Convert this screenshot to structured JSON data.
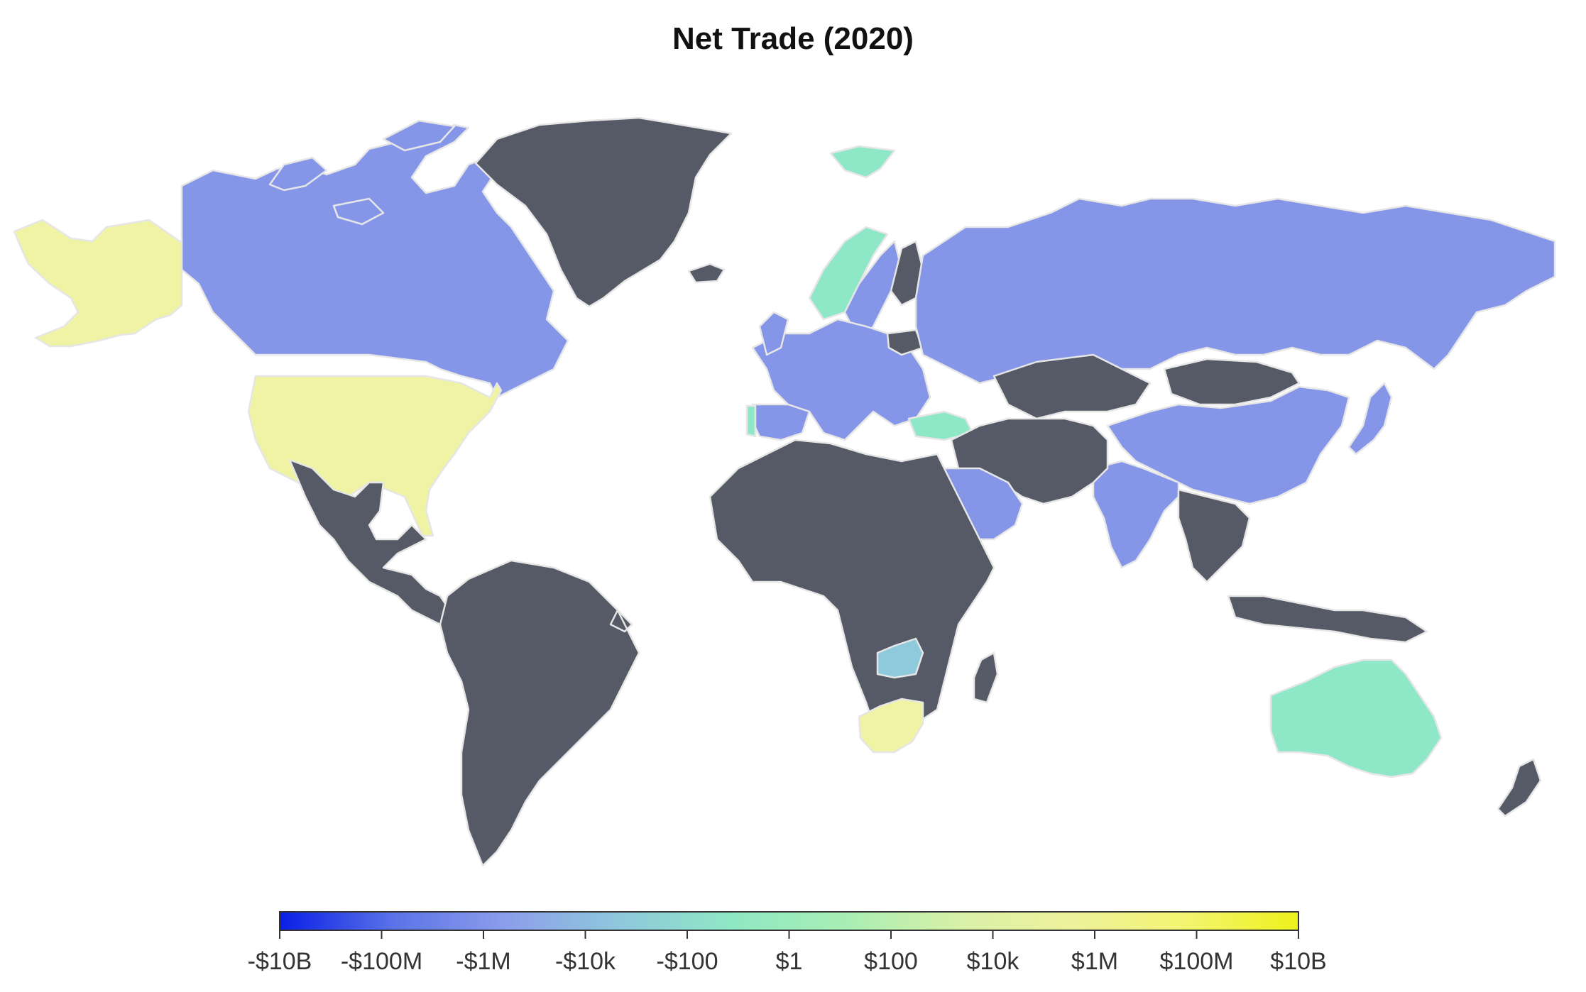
{
  "title": "Net Trade (2020)",
  "legend": {
    "ticks": [
      "-$10B",
      "-$100M",
      "-$1M",
      "-$10k",
      "-$100",
      "$1",
      "$100",
      "$10k",
      "$1M",
      "$100M",
      "$10B"
    ],
    "gradient": [
      "#0a1ee6",
      "#5a72e8",
      "#8c9eea",
      "#8fc8dc",
      "#8fe8c4",
      "#a8eeb4",
      "#d8f0a8",
      "#eef29c",
      "#f2f470",
      "#eef21a"
    ]
  },
  "colors": {
    "no_data_dark": "#555a66",
    "negative_mid": "#8595e8",
    "near_zero": "#8ee8c8",
    "slightly_negative": "#8ec9dc",
    "positive_mid": "#eff3a3",
    "border": "#e6e6e6",
    "missing": "#d9d9d9"
  },
  "regions": [
    {
      "name": "Canada",
      "category": "negative_mid"
    },
    {
      "name": "Greenland",
      "category": "no_data_dark"
    },
    {
      "name": "Alaska",
      "category": "positive_mid"
    },
    {
      "name": "United States",
      "category": "positive_mid"
    },
    {
      "name": "Mexico and Central America",
      "category": "no_data_dark"
    },
    {
      "name": "South America",
      "category": "no_data_dark"
    },
    {
      "name": "Iceland",
      "category": "no_data_dark"
    },
    {
      "name": "Svalbard",
      "category": "near_zero"
    },
    {
      "name": "Norway",
      "category": "near_zero"
    },
    {
      "name": "Sweden",
      "category": "negative_mid"
    },
    {
      "name": "Finland",
      "category": "no_data_dark"
    },
    {
      "name": "Western Europe",
      "category": "negative_mid"
    },
    {
      "name": "Spain",
      "category": "negative_mid"
    },
    {
      "name": "Portugal",
      "category": "near_zero"
    },
    {
      "name": "Belarus",
      "category": "no_data_dark"
    },
    {
      "name": "Turkey",
      "category": "near_zero"
    },
    {
      "name": "Russia",
      "category": "negative_mid"
    },
    {
      "name": "Kazakhstan",
      "category": "no_data_dark"
    },
    {
      "name": "Mongolia",
      "category": "no_data_dark"
    },
    {
      "name": "China",
      "category": "negative_mid"
    },
    {
      "name": "India",
      "category": "negative_mid"
    },
    {
      "name": "Middle East",
      "category": "no_data_dark"
    },
    {
      "name": "Saudi Arabia",
      "category": "negative_mid"
    },
    {
      "name": "Japan",
      "category": "negative_mid"
    },
    {
      "name": "Africa",
      "category": "no_data_dark"
    },
    {
      "name": "Zambia",
      "category": "slightly_negative"
    },
    {
      "name": "South Africa",
      "category": "positive_mid"
    },
    {
      "name": "Madagascar",
      "category": "no_data_dark"
    },
    {
      "name": "Southeast Asia",
      "category": "no_data_dark"
    },
    {
      "name": "Australia",
      "category": "near_zero"
    },
    {
      "name": "New Zealand",
      "category": "no_data_dark"
    }
  ]
}
